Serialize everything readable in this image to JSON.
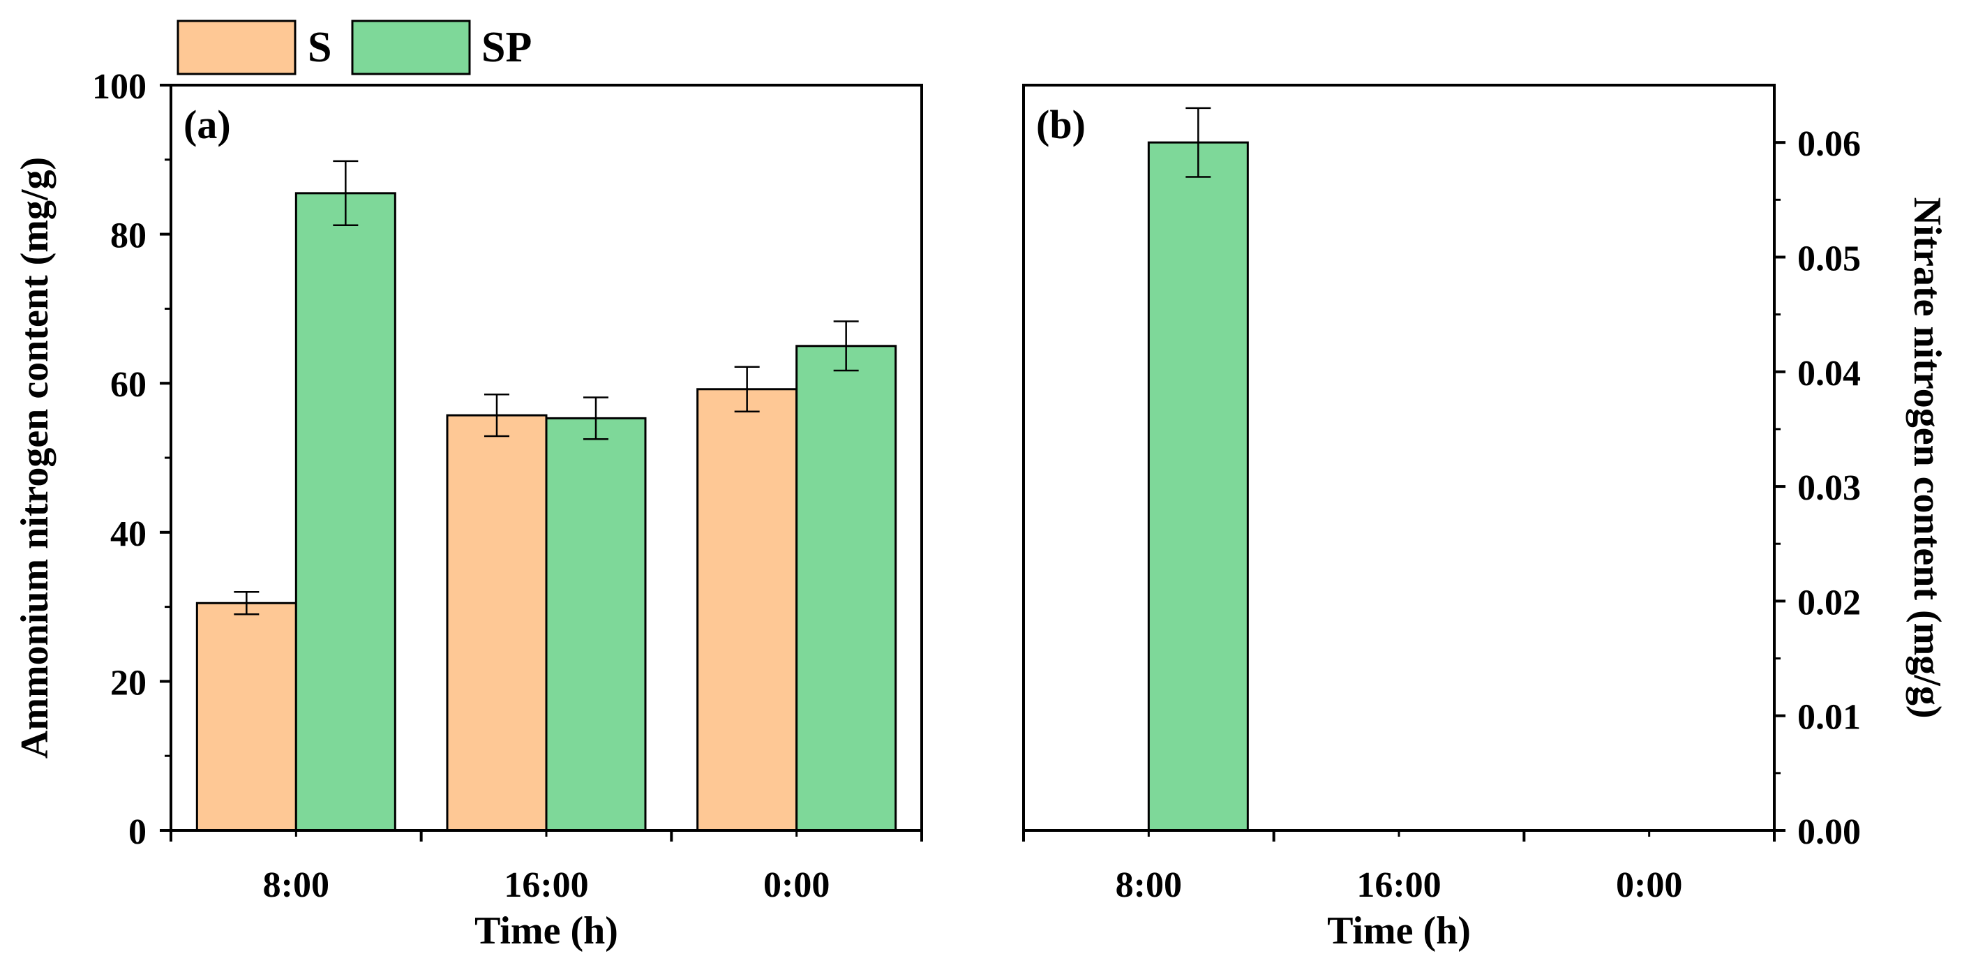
{
  "legend": {
    "items": [
      {
        "label": "S",
        "color": "#FEC895"
      },
      {
        "label": "SP",
        "color": "#7ED899"
      }
    ]
  },
  "colors": {
    "S": "#FEC895",
    "SP": "#7ED899",
    "axis": "#000000"
  },
  "chart_data": [
    {
      "panel_label": "(a)",
      "type": "bar",
      "xlabel": "Time (h)",
      "ylabel": "Ammonium nitrogen content (mg/g)",
      "categories": [
        "8:00",
        "16:00",
        "0:00"
      ],
      "ylim": [
        0,
        100
      ],
      "yticks": [
        0,
        20,
        40,
        60,
        80,
        100
      ],
      "ytick_labels": [
        "0",
        "20",
        "40",
        "60",
        "80",
        "100"
      ],
      "y_axis_side": "left",
      "series": [
        {
          "name": "S",
          "values": [
            30.5,
            55.7,
            59.2
          ],
          "errors": [
            1.5,
            2.8,
            3.0
          ]
        },
        {
          "name": "SP",
          "values": [
            85.5,
            55.3,
            65.0
          ],
          "errors": [
            4.3,
            2.8,
            3.3
          ]
        }
      ]
    },
    {
      "panel_label": "(b)",
      "type": "bar",
      "xlabel": "Time (h)",
      "ylabel": "Nitrate nitrogen content (mg/g)",
      "categories": [
        "8:00",
        "16:00",
        "0:00"
      ],
      "ylim": [
        0,
        0.065
      ],
      "yticks": [
        0,
        0.01,
        0.02,
        0.03,
        0.04,
        0.05,
        0.06
      ],
      "ytick_labels": [
        "0.00",
        "0.01",
        "0.02",
        "0.03",
        "0.04",
        "0.05",
        "0.06"
      ],
      "y_axis_side": "right",
      "series": [
        {
          "name": "S",
          "values": [
            0,
            0,
            0
          ],
          "errors": [
            0,
            0,
            0
          ]
        },
        {
          "name": "SP",
          "values": [
            0.06,
            0,
            0
          ],
          "errors": [
            0.003,
            0,
            0
          ]
        }
      ]
    }
  ]
}
